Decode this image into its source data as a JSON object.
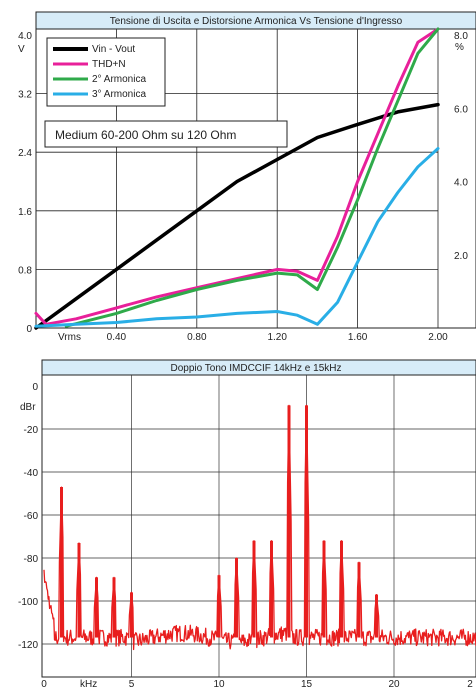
{
  "chart_data": [
    {
      "type": "line",
      "title": "Tensione di Uscita e Distorsione Armonica Vs Tensione d'Ingresso",
      "annotation": "Medium 60-200 Ohm su 120 Ohm",
      "xlabel": "Vrms",
      "ylabel_left": "V",
      "ylabel_right": "%",
      "xlim": [
        0,
        2.0
      ],
      "ylim_left": [
        0,
        4.0
      ],
      "ylim_right": [
        0,
        8.0
      ],
      "x_ticks": [
        "0.40",
        "0.80",
        "1.20",
        "1.60",
        "2.00"
      ],
      "y_ticks_left": [
        "0",
        "0.8",
        "1.6",
        "2.4",
        "3.2",
        "4.0"
      ],
      "y_ticks_right": [
        "2.0",
        "4.0",
        "6.0",
        "8.0"
      ],
      "grid": true,
      "legend_position": "top-left",
      "series": [
        {
          "name": "Vin - Vout",
          "axis": "left",
          "color": "#000000",
          "x": [
            0,
            0.2,
            0.4,
            0.6,
            0.8,
            1.0,
            1.2,
            1.4,
            1.6,
            1.8,
            2.0
          ],
          "y": [
            0,
            0.4,
            0.8,
            1.2,
            1.6,
            2.0,
            2.3,
            2.6,
            2.78,
            2.95,
            3.05
          ]
        },
        {
          "name": "THD+N",
          "axis": "right",
          "color": "#e8209a",
          "x": [
            0,
            0.05,
            0.2,
            0.4,
            0.6,
            0.8,
            1.0,
            1.2,
            1.3,
            1.4,
            1.5,
            1.6,
            1.7,
            1.8,
            1.9,
            2.0
          ],
          "y": [
            0.4,
            0.1,
            0.25,
            0.55,
            0.85,
            1.1,
            1.35,
            1.6,
            1.55,
            1.3,
            2.5,
            4.0,
            5.3,
            6.6,
            7.8,
            8.8
          ]
        },
        {
          "name": "2° Armonica",
          "axis": "right",
          "color": "#2faa4a",
          "x": [
            0.15,
            0.4,
            0.6,
            0.8,
            1.0,
            1.2,
            1.3,
            1.4,
            1.5,
            1.6,
            1.7,
            1.8,
            1.9,
            2.0
          ],
          "y": [
            0.05,
            0.4,
            0.75,
            1.05,
            1.3,
            1.5,
            1.45,
            1.05,
            2.2,
            3.5,
            4.9,
            6.2,
            7.5,
            8.6
          ]
        },
        {
          "name": "3° Armonica",
          "axis": "right",
          "color": "#29aee6",
          "x": [
            0,
            0.2,
            0.4,
            0.6,
            0.8,
            1.0,
            1.2,
            1.3,
            1.4,
            1.5,
            1.6,
            1.7,
            1.8,
            1.9,
            2.0
          ],
          "y": [
            0.05,
            0.1,
            0.15,
            0.25,
            0.3,
            0.4,
            0.45,
            0.35,
            0.1,
            0.7,
            1.8,
            2.9,
            3.7,
            4.4,
            4.9
          ]
        }
      ]
    },
    {
      "type": "line",
      "title": "Doppio Tono IMDCCIF 14kHz e 15kHz",
      "xlabel": "kHz",
      "ylabel": "dBr",
      "xlim": [
        0,
        24
      ],
      "ylim": [
        -130,
        5
      ],
      "x_ticks": [
        "0",
        "5",
        "10",
        "15",
        "20",
        "2"
      ],
      "y_ticks": [
        "0",
        "-20",
        "-40",
        "-60",
        "-80",
        "-100",
        "-120"
      ],
      "grid": true,
      "series": [
        {
          "name": "",
          "color": "#e81e1e",
          "noise_floor_db": -117,
          "peaks": [
            {
              "x": 1,
              "y": -47
            },
            {
              "x": 2,
              "y": -73
            },
            {
              "x": 3,
              "y": -89
            },
            {
              "x": 4,
              "y": -89
            },
            {
              "x": 5,
              "y": -96
            },
            {
              "x": 10,
              "y": -88
            },
            {
              "x": 11,
              "y": -80
            },
            {
              "x": 12,
              "y": -72
            },
            {
              "x": 13,
              "y": -72
            },
            {
              "x": 14,
              "y": -9
            },
            {
              "x": 15,
              "y": -9
            },
            {
              "x": 16,
              "y": -72
            },
            {
              "x": 17,
              "y": -72
            },
            {
              "x": 18,
              "y": -82
            },
            {
              "x": 19,
              "y": -97
            }
          ]
        }
      ]
    }
  ]
}
